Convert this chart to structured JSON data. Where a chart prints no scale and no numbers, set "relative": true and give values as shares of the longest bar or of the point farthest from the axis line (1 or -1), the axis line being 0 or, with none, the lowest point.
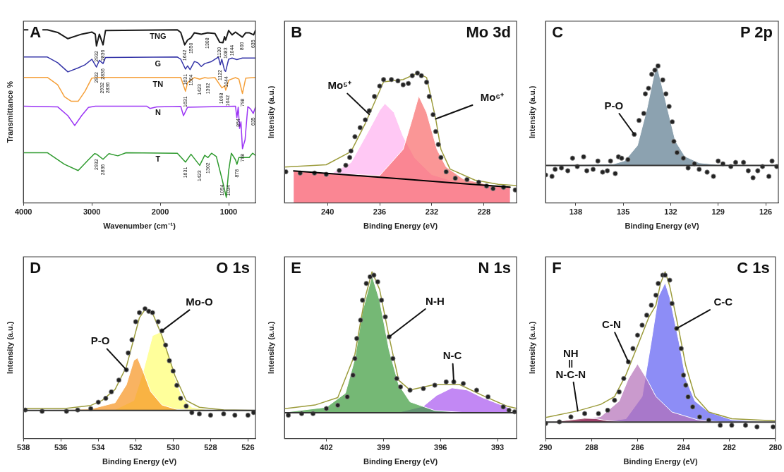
{
  "chart_data": [
    {
      "type": "line",
      "title": "A",
      "xlabel": "Wavenumber (cm⁻¹)",
      "ylabel": "Transmittance %",
      "relative": true,
      "xlim": [
        4000,
        608
      ],
      "xticks": [
        4000,
        3000,
        2000,
        1000
      ],
      "series": [
        {
          "name": "TNG",
          "color": "#1a1a1a",
          "x": [
            4000,
            3650,
            3500,
            3350,
            3150,
            3000,
            2950,
            2932,
            2890,
            2836,
            2800,
            1750,
            1700,
            1642,
            1600,
            1550,
            1500,
            1400,
            1308,
            1200,
            1130,
            1083,
            1060,
            1044,
            1000,
            950,
            900,
            800,
            750,
            700,
            635,
            608
          ],
          "values": [
            1.0,
            1.0,
            0.985,
            0.949,
            0.975,
            0.987,
            0.975,
            0.907,
            0.975,
            0.913,
            0.996,
            1.0,
            0.985,
            0.913,
            0.941,
            0.954,
            0.983,
            0.975,
            0.983,
            0.979,
            0.928,
            0.926,
            0.96,
            0.941,
            0.996,
            0.971,
            0.987,
            0.958,
            0.983,
            0.983,
            0.971,
            0.996
          ]
        },
        {
          "name": "G",
          "color": "#3535a8",
          "x": [
            4000,
            3650,
            3500,
            3350,
            3200,
            3100,
            3000,
            2932,
            2890,
            2836,
            2800,
            1750,
            1700,
            1631,
            1600,
            1564,
            1500,
            1450,
            1400,
            1350,
            1250,
            1150,
            1122,
            1100,
            1060,
            1044,
            1000,
            950,
            880,
            800,
            700,
            608
          ],
          "values": [
            0.843,
            0.843,
            0.81,
            0.757,
            0.78,
            0.798,
            0.83,
            0.785,
            0.824,
            0.805,
            0.84,
            0.843,
            0.83,
            0.773,
            0.792,
            0.77,
            0.817,
            0.81,
            0.788,
            0.805,
            0.817,
            0.843,
            0.798,
            0.83,
            0.766,
            0.76,
            0.83,
            0.837,
            0.828,
            0.837,
            0.837,
            0.837
          ]
        },
        {
          "name": "TN",
          "color": "#f5a03a",
          "x": [
            4000,
            3650,
            3500,
            3400,
            3300,
            3200,
            3100,
            3000,
            2932,
            2900,
            2836,
            1700,
            1631,
            1600,
            1500,
            1423,
            1350,
            1302,
            1200,
            1098,
            1060,
            1042,
            1000,
            900,
            850,
            798,
            750,
            608
          ],
          "values": [
            0.725,
            0.725,
            0.683,
            0.613,
            0.587,
            0.587,
            0.645,
            0.721,
            0.724,
            0.725,
            0.725,
            0.725,
            0.645,
            0.696,
            0.724,
            0.715,
            0.724,
            0.721,
            0.724,
            0.664,
            0.677,
            0.651,
            0.709,
            0.724,
            0.715,
            0.632,
            0.721,
            0.725
          ]
        },
        {
          "name": "N",
          "color": "#9b35f5",
          "x": [
            4000,
            3500,
            3350,
            3250,
            3150,
            3050,
            2950,
            2200,
            2150,
            2050,
            1700,
            1660,
            1600,
            900,
            880,
            860,
            854,
            840,
            820,
            798,
            760,
            720,
            680,
            640,
            635,
            608
          ],
          "values": [
            0.559,
            0.555,
            0.504,
            0.447,
            0.504,
            0.552,
            0.559,
            0.559,
            0.546,
            0.555,
            0.558,
            0.504,
            0.553,
            0.559,
            0.492,
            0.553,
            0.516,
            0.43,
            0.468,
            0.313,
            0.364,
            0.556,
            0.543,
            0.517,
            0.523,
            0.553
          ]
        },
        {
          "name": "T",
          "color": "#2e9a2e",
          "x": [
            4000,
            3650,
            3400,
            3200,
            3050,
            2960,
            2932,
            2836,
            2750,
            2620,
            2500,
            1750,
            1631,
            1550,
            1423,
            1350,
            1302,
            1250,
            1180,
            1094,
            1034,
            1000,
            960,
            900,
            878,
            850,
            700,
            650,
            608
          ],
          "values": [
            0.29,
            0.29,
            0.223,
            0.187,
            0.249,
            0.285,
            0.282,
            0.252,
            0.285,
            0.272,
            0.29,
            0.287,
            0.236,
            0.281,
            0.217,
            0.275,
            0.262,
            0.287,
            0.268,
            0.134,
            0.032,
            0.185,
            0.287,
            0.249,
            0.223,
            0.262,
            0.262,
            0.287,
            0.275
          ]
        }
      ],
      "annotations": [
        {
          "text": "2932",
          "x": 2932,
          "y": 0.907
        },
        {
          "text": "2836",
          "x": 2836,
          "y": 0.913
        },
        {
          "text": "1642",
          "x": 1642,
          "y": 0.913
        },
        {
          "text": "1550",
          "x": 1550,
          "y": 0.954
        },
        {
          "text": "1308",
          "x": 1308,
          "y": 0.983
        },
        {
          "text": "1130",
          "x": 1130,
          "y": 0.928
        },
        {
          "text": "1083",
          "x": 1083,
          "y": 0.926
        },
        {
          "text": "1044",
          "x": 1044,
          "y": 0.941
        },
        {
          "text": "800",
          "x": 800,
          "y": 0.958
        },
        {
          "text": "635",
          "x": 635,
          "y": 0.971
        },
        {
          "text": "2932",
          "x": 2932,
          "y": 0.785
        },
        {
          "text": "2836",
          "x": 2836,
          "y": 0.805
        },
        {
          "text": "1631",
          "x": 1631,
          "y": 0.773
        },
        {
          "text": "1564",
          "x": 1564,
          "y": 0.77
        },
        {
          "text": "1122",
          "x": 1122,
          "y": 0.798
        },
        {
          "text": "1044",
          "x": 1044,
          "y": 0.76
        },
        {
          "text": "2932",
          "x": 2932,
          "y": 0.724
        },
        {
          "text": "2836",
          "x": 2836,
          "y": 0.725
        },
        {
          "text": "1631",
          "x": 1631,
          "y": 0.645
        },
        {
          "text": "1423",
          "x": 1423,
          "y": 0.715
        },
        {
          "text": "1302",
          "x": 1302,
          "y": 0.721
        },
        {
          "text": "1098",
          "x": 1098,
          "y": 0.664
        },
        {
          "text": "1042",
          "x": 1042,
          "y": 0.651
        },
        {
          "text": "798",
          "x": 798,
          "y": 0.632
        },
        {
          "text": "854",
          "x": 854,
          "y": 0.516
        },
        {
          "text": "798",
          "x": 798,
          "y": 0.313
        },
        {
          "text": "635",
          "x": 635,
          "y": 0.523
        },
        {
          "text": "2932",
          "x": 2932,
          "y": 0.282
        },
        {
          "text": "2836",
          "x": 2836,
          "y": 0.252
        },
        {
          "text": "1631",
          "x": 1631,
          "y": 0.236
        },
        {
          "text": "1423",
          "x": 1423,
          "y": 0.217
        },
        {
          "text": "1302",
          "x": 1302,
          "y": 0.262
        },
        {
          "text": "1094",
          "x": 1094,
          "y": 0.134
        },
        {
          "text": "1034",
          "x": 1034,
          "y": 0.032
        },
        {
          "text": "878",
          "x": 878,
          "y": 0.223
        }
      ]
    },
    {
      "type": "line",
      "title": "B",
      "subtitle": "Mo 3d",
      "xlabel": "Binding Energy (eV)",
      "ylabel": "Intensity (a.u.)",
      "relative": true,
      "xlim": [
        243.3,
        225.5
      ],
      "xticks": [
        240,
        236,
        232,
        228
      ],
      "series": [
        {
          "color": "#000000",
          "x": [
            242.6,
            238.0,
            234.0,
            230.0,
            226.0
          ],
          "values": [
            0.247,
            0.212,
            0.182,
            0.151,
            0.121
          ]
        },
        {
          "type": "area",
          "color": "#ffb0f0",
          "x": [
            242.6,
            239.7,
            238.2,
            236.9,
            236.0,
            235.6,
            234.9,
            234.2,
            233.3,
            232.0,
            230.6,
            228.7,
            226.0
          ],
          "values": [
            0.247,
            0.227,
            0.311,
            0.546,
            0.714,
            0.765,
            0.697,
            0.513,
            0.345,
            0.218,
            0.176,
            0.143,
            0.121
          ]
        },
        {
          "type": "area",
          "color": "#f86a6a",
          "x": [
            242.6,
            239.7,
            236.0,
            234.2,
            233.5,
            233.0,
            232.4,
            231.6,
            230.9,
            229.6,
            227.8,
            226.0
          ],
          "values": [
            0.247,
            0.227,
            0.21,
            0.412,
            0.647,
            0.824,
            0.697,
            0.412,
            0.277,
            0.185,
            0.143,
            0.121
          ]
        },
        {
          "color": "#9c9c3c",
          "x": [
            243.3,
            240.1,
            238.2,
            237.1,
            235.7,
            234.2,
            233.1,
            232.4,
            231.7,
            231.3,
            230.6,
            228.7,
            226.9,
            225.5
          ],
          "values": [
            0.277,
            0.294,
            0.395,
            0.613,
            0.933,
            0.95,
            1.0,
            0.966,
            0.647,
            0.412,
            0.261,
            0.176,
            0.143,
            0.134
          ]
        },
        {
          "type": "scatter",
          "marker": "circle",
          "color": "#222222",
          "x": [
            243.2,
            242.1,
            241.0,
            240.1,
            239.1,
            238.6,
            238.3,
            238.2,
            237.9,
            237.5,
            237.1,
            236.8,
            236.4,
            236.0,
            235.7,
            235.1,
            234.6,
            234.2,
            233.8,
            233.5,
            233.1,
            232.8,
            232.4,
            232.2,
            231.9,
            231.7,
            231.5,
            231.3,
            230.9,
            230.2,
            229.3,
            228.4,
            227.8,
            227.3,
            226.5,
            225.6
          ],
          "values": [
            0.24,
            0.23,
            0.23,
            0.22,
            0.25,
            0.29,
            0.35,
            0.4,
            0.51,
            0.58,
            0.64,
            0.71,
            0.82,
            0.9,
            0.95,
            0.95,
            0.94,
            0.91,
            0.92,
            0.98,
            1.0,
            0.98,
            0.93,
            0.82,
            0.68,
            0.55,
            0.45,
            0.35,
            0.24,
            0.19,
            0.18,
            0.16,
            0.13,
            0.11,
            0.12,
            0.1
          ]
        }
      ],
      "annotations": [
        {
          "text": "Mo⁵⁺",
          "x": 236.8,
          "y": 0.682
        },
        {
          "text": "Mo⁶⁺",
          "x": 231.7,
          "y": 0.647
        }
      ]
    },
    {
      "type": "area",
      "title": "C",
      "subtitle": "P 2p",
      "xlabel": "Binding Energy (eV)",
      "ylabel": "Intensity (a.u.)",
      "relative": true,
      "xlim": [
        139.9,
        125.2
      ],
      "xticks": [
        138,
        135,
        132,
        129,
        126
      ],
      "ref_lines": [
        {
          "axis": "y",
          "value": 0.268,
          "color": "#333333"
        }
      ],
      "series": [
        {
          "color": "#5b7a8f",
          "x": [
            139.6,
            135.6,
            134.9,
            134.1,
            133.5,
            132.9,
            132.6,
            132.1,
            131.7,
            131.1,
            130.2,
            128.8,
            125.5
          ],
          "values": [
            0.268,
            0.279,
            0.302,
            0.411,
            0.674,
            1.0,
            0.86,
            0.628,
            0.442,
            0.333,
            0.287,
            0.271,
            0.268
          ]
        },
        {
          "type": "scatter",
          "marker": "circle",
          "color": "#222222",
          "x": [
            139.9,
            139.5,
            139.3,
            138.9,
            138.5,
            138.2,
            137.9,
            137.5,
            137.3,
            136.9,
            136.6,
            136.3,
            136.0,
            135.8,
            135.5,
            135.3,
            135.1,
            134.7,
            134.3,
            134.0,
            133.7,
            133.6,
            133.4,
            133.2,
            133.0,
            132.8,
            132.5,
            132.3,
            132.1,
            131.9,
            131.8,
            131.6,
            131.2,
            130.9,
            130.5,
            130.2,
            129.7,
            129.3,
            129.0,
            128.7,
            128.2,
            127.9,
            127.4,
            127.1,
            126.8,
            126.5,
            126.2,
            125.8,
            125.6,
            125.3
          ],
          "values": [
            0.2,
            0.19,
            0.24,
            0.25,
            0.23,
            0.32,
            0.26,
            0.33,
            0.23,
            0.24,
            0.3,
            0.22,
            0.23,
            0.3,
            0.21,
            0.33,
            0.32,
            0.31,
            0.49,
            0.59,
            0.64,
            0.78,
            0.82,
            0.92,
            0.95,
            0.98,
            0.88,
            0.78,
            0.69,
            0.58,
            0.44,
            0.36,
            0.32,
            0.25,
            0.28,
            0.24,
            0.22,
            0.19,
            0.3,
            0.28,
            0.26,
            0.29,
            0.29,
            0.23,
            0.18,
            0.23,
            0.26,
            0.19,
            0.3,
            0.26
          ]
        }
      ],
      "annotations": [
        {
          "text": "P-O",
          "x": 134.3,
          "y": 0.49
        }
      ]
    },
    {
      "type": "line",
      "title": "D",
      "subtitle": "O 1s",
      "xlabel": "Binding Energy (eV)",
      "ylabel": "Intensity (a.u.)",
      "relative": true,
      "xlim": [
        538,
        525.6
      ],
      "xticks": [
        538,
        536,
        534,
        532,
        530,
        528,
        526
      ],
      "ref_lines": [
        {
          "axis": "y",
          "value": 0.216,
          "color": "#333333"
        }
      ],
      "series": [
        {
          "type": "area",
          "color": "#ffff70",
          "x": [
            537.7,
            533.1,
            532.1,
            531.6,
            531.1,
            530.7,
            530.4,
            529.9,
            529.5,
            529.0,
            528.0,
            525.9
          ],
          "values": [
            0.216,
            0.224,
            0.293,
            0.517,
            0.793,
            0.819,
            0.724,
            0.466,
            0.31,
            0.241,
            0.218,
            0.216
          ]
        },
        {
          "type": "area",
          "color": "#f7931e",
          "x": [
            537.7,
            534.4,
            533.1,
            532.5,
            532.1,
            531.9,
            531.6,
            531.2,
            530.6,
            529.8,
            528.0,
            525.9
          ],
          "values": [
            0.216,
            0.228,
            0.276,
            0.414,
            0.603,
            0.621,
            0.517,
            0.362,
            0.259,
            0.224,
            0.216,
            0.216
          ]
        },
        {
          "color": "#9c9c3c",
          "x": [
            538.0,
            535.7,
            534.4,
            533.8,
            533.1,
            532.5,
            531.8,
            531.5,
            531.1,
            530.6,
            529.9,
            529.3,
            528.6,
            527.3,
            525.6
          ],
          "values": [
            0.233,
            0.233,
            0.255,
            0.293,
            0.379,
            0.552,
            0.931,
            0.995,
            0.966,
            0.793,
            0.483,
            0.293,
            0.241,
            0.221,
            0.216
          ]
        },
        {
          "type": "scatter",
          "marker": "circle",
          "color": "#222222",
          "x": [
            537.9,
            537.0,
            535.7,
            535.1,
            534.4,
            534.0,
            533.6,
            533.3,
            532.9,
            532.5,
            532.4,
            532.2,
            532.0,
            531.8,
            531.5,
            531.3,
            531.1,
            530.8,
            530.6,
            530.4,
            530.2,
            530.0,
            529.8,
            529.6,
            529.3,
            529.0,
            528.6,
            528.0,
            527.3,
            526.7,
            526.0,
            525.7
          ],
          "values": [
            0.22,
            0.21,
            0.21,
            0.22,
            0.23,
            0.28,
            0.31,
            0.36,
            0.45,
            0.53,
            0.66,
            0.76,
            0.9,
            0.97,
            1.0,
            0.98,
            0.97,
            0.9,
            0.83,
            0.72,
            0.6,
            0.52,
            0.41,
            0.31,
            0.25,
            0.2,
            0.19,
            0.18,
            0.19,
            0.18,
            0.18,
            0.2
          ]
        }
      ],
      "annotations": [
        {
          "text": "P-O",
          "x": 532.5,
          "y": 0.53
        },
        {
          "text": "Mo-O",
          "x": 530.6,
          "y": 0.83
        }
      ]
    },
    {
      "type": "line",
      "title": "E",
      "subtitle": "N 1s",
      "xlabel": "Binding Energy (eV)",
      "ylabel": "Intensity (a.u.)",
      "relative": true,
      "xlim": [
        404.2,
        392
      ],
      "xticks": [
        402,
        399,
        396,
        393
      ],
      "ref_lines": [
        {
          "axis": "y",
          "value": 0.155,
          "color": "#333333"
        }
      ],
      "series": [
        {
          "type": "area",
          "color": "#a855f0",
          "x": [
            403.9,
            398.2,
            396.9,
            396.2,
            395.4,
            394.6,
            393.8,
            392.5,
            392.3
          ],
          "values": [
            0.155,
            0.158,
            0.194,
            0.259,
            0.304,
            0.291,
            0.246,
            0.188,
            0.178
          ]
        },
        {
          "type": "area",
          "color": "#3a9a3a",
          "x": [
            403.9,
            402.0,
            401.0,
            400.5,
            400.1,
            399.6,
            399.2,
            398.7,
            398.2,
            397.6,
            396.3,
            394.6,
            392.3
          ],
          "values": [
            0.162,
            0.188,
            0.272,
            0.479,
            0.764,
            0.978,
            0.829,
            0.531,
            0.324,
            0.22,
            0.168,
            0.155,
            0.155
          ]
        },
        {
          "color": "#9c9c3c",
          "x": [
            404.2,
            402.6,
            401.4,
            400.5,
            400.0,
            399.6,
            399.2,
            398.7,
            398.2,
            397.6,
            396.3,
            395.0,
            393.8,
            392.5,
            392.0
          ],
          "values": [
            0.179,
            0.201,
            0.246,
            0.505,
            0.829,
            1.0,
            0.894,
            0.609,
            0.35,
            0.291,
            0.324,
            0.324,
            0.259,
            0.194,
            0.181
          ]
        },
        {
          "type": "scatter",
          "marker": "circle",
          "color": "#222222",
          "x": [
            404.0,
            403.3,
            402.7,
            402.0,
            401.4,
            400.9,
            400.6,
            400.5,
            400.4,
            400.2,
            400.1,
            399.9,
            399.7,
            399.5,
            399.3,
            399.1,
            398.9,
            398.7,
            398.5,
            398.3,
            398.1,
            397.6,
            396.9,
            396.3,
            395.7,
            395.3,
            394.8,
            394.1,
            393.5,
            392.7,
            392.4,
            392.1
          ],
          "values": [
            0.14,
            0.15,
            0.15,
            0.18,
            0.2,
            0.25,
            0.38,
            0.48,
            0.6,
            0.71,
            0.83,
            0.93,
            0.97,
            0.98,
            0.94,
            0.83,
            0.73,
            0.61,
            0.48,
            0.36,
            0.31,
            0.29,
            0.3,
            0.32,
            0.34,
            0.34,
            0.33,
            0.29,
            0.25,
            0.19,
            0.17,
            0.16
          ]
        }
      ],
      "annotations": [
        {
          "text": "N-H",
          "x": 398.7,
          "y": 0.61
        },
        {
          "text": "N-C",
          "x": 395.3,
          "y": 0.34
        }
      ]
    },
    {
      "type": "line",
      "title": "F",
      "subtitle": "C 1s",
      "xlabel": "Binding Energy (eV)",
      "ylabel": "Intensity (a.u.)",
      "relative": true,
      "xlim": [
        290,
        280
      ],
      "xticks": [
        290,
        288,
        286,
        284,
        282,
        280
      ],
      "ref_lines": [
        {
          "axis": "y",
          "value": 0.099,
          "color": "#333333"
        }
      ],
      "series": [
        {
          "type": "area",
          "color": "#5c5cf2",
          "x": [
            289.8,
            287.6,
            286.5,
            285.8,
            285.4,
            285.1,
            284.8,
            284.6,
            284.2,
            283.9,
            283.5,
            282.9,
            281.9,
            280.2
          ],
          "values": [
            0.099,
            0.099,
            0.119,
            0.252,
            0.583,
            0.848,
            0.934,
            0.848,
            0.583,
            0.358,
            0.225,
            0.159,
            0.113,
            0.099
          ]
        },
        {
          "type": "area",
          "color": "#b46fb8",
          "x": [
            289.8,
            289.1,
            287.6,
            286.8,
            286.4,
            286.0,
            285.6,
            285.2,
            284.5,
            283.4,
            282.4,
            280.2
          ],
          "values": [
            0.099,
            0.099,
            0.132,
            0.225,
            0.358,
            0.448,
            0.358,
            0.252,
            0.159,
            0.113,
            0.099,
            0.099
          ]
        },
        {
          "type": "area",
          "color": "#8b1a40",
          "x": [
            289.8,
            289.1,
            288.3,
            287.8,
            287.3,
            286.5,
            280.2
          ],
          "values": [
            0.099,
            0.109,
            0.122,
            0.119,
            0.106,
            0.099,
            0.099
          ]
        },
        {
          "color": "#9c9c3c",
          "x": [
            290.0,
            288.6,
            287.6,
            287.0,
            286.5,
            286.0,
            285.5,
            285.2,
            285.0,
            284.8,
            284.6,
            284.2,
            283.9,
            283.5,
            282.9,
            281.9,
            280.0
          ],
          "values": [
            0.126,
            0.166,
            0.205,
            0.252,
            0.384,
            0.556,
            0.73,
            0.8,
            0.93,
            1.0,
            0.914,
            0.649,
            0.437,
            0.252,
            0.159,
            0.119,
            0.106
          ]
        },
        {
          "type": "scatter",
          "marker": "circle",
          "color": "#222222",
          "x": [
            290.0,
            289.4,
            288.9,
            288.3,
            287.7,
            287.3,
            287.0,
            286.8,
            286.6,
            286.4,
            286.2,
            286.0,
            285.8,
            285.6,
            285.4,
            285.2,
            285.1,
            284.9,
            284.8,
            284.6,
            284.5,
            284.3,
            284.1,
            284.0,
            283.9,
            283.8,
            283.6,
            283.3,
            282.9,
            282.4,
            281.9,
            281.3,
            280.8,
            280.1
          ],
          "values": [
            0.09,
            0.1,
            0.13,
            0.15,
            0.15,
            0.17,
            0.23,
            0.28,
            0.36,
            0.46,
            0.54,
            0.62,
            0.68,
            0.74,
            0.8,
            0.86,
            0.93,
            0.98,
            0.98,
            0.95,
            0.81,
            0.66,
            0.54,
            0.38,
            0.32,
            0.25,
            0.19,
            0.13,
            0.11,
            0.08,
            0.08,
            0.08,
            0.07,
            0.07
          ]
        }
      ],
      "annotations": [
        {
          "text": "C-C",
          "x": 284.3,
          "y": 0.66
        },
        {
          "text": "C-N",
          "x": 286.4,
          "y": 0.46
        },
        {
          "text": "NH\n‖\nN-C-N",
          "x": 288.6,
          "y": 0.166
        }
      ]
    }
  ]
}
